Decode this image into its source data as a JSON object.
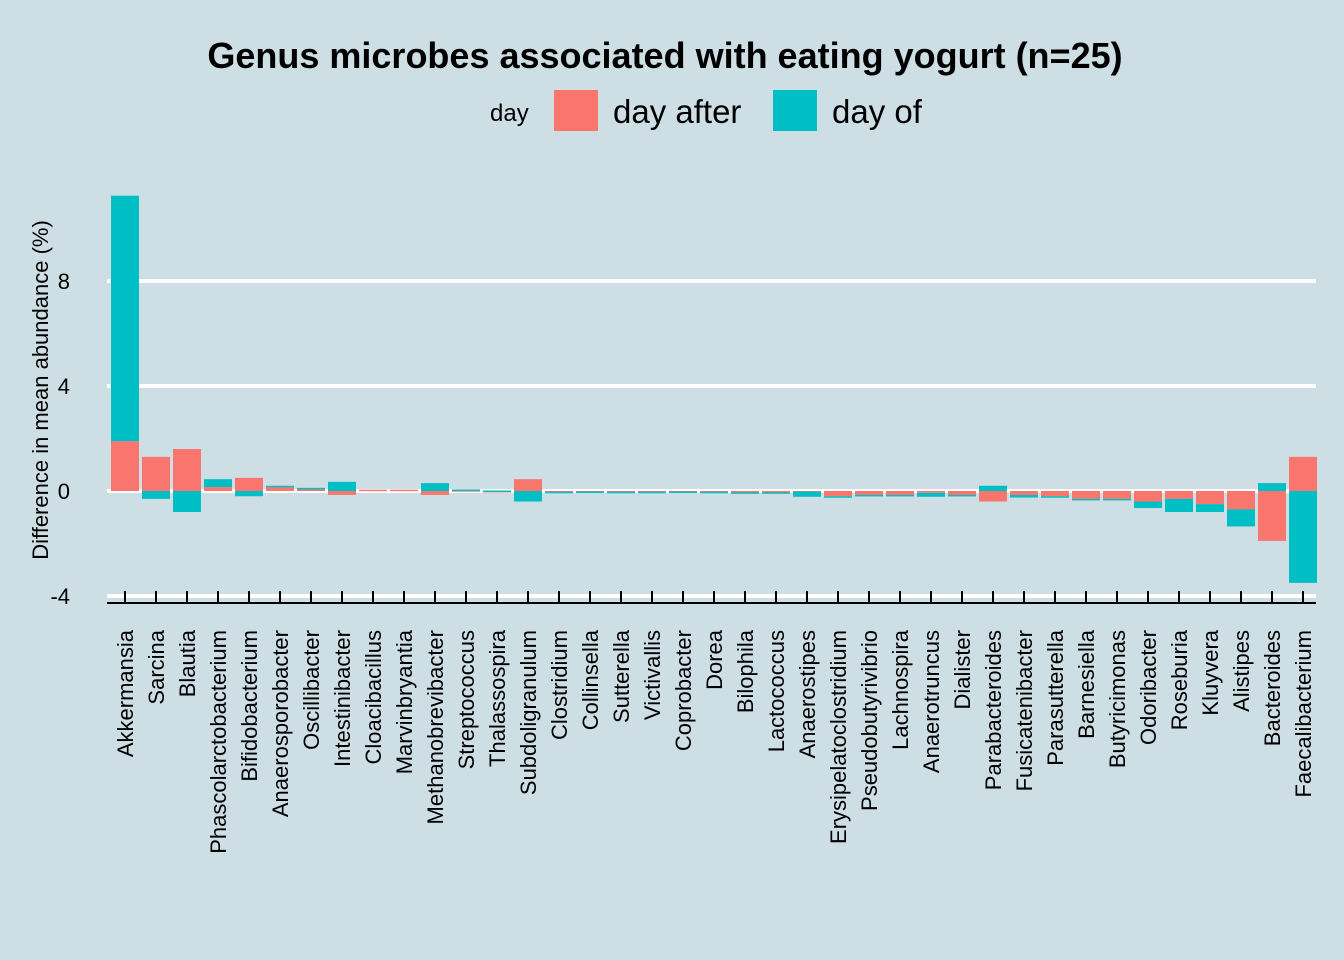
{
  "chart_data": {
    "type": "bar",
    "stacked": true,
    "title": "Genus microbes associated with eating yogurt (n=25)",
    "ylabel": "Difference in mean abundance (%)",
    "xlabel": "",
    "ylim": [
      -4.2,
      11.5
    ],
    "yticks": [
      -4,
      0,
      4,
      8
    ],
    "grid": true,
    "legend": {
      "title": "day",
      "position": "top"
    },
    "categories": [
      "Akkermansia",
      "Sarcina",
      "Blautia",
      "Phascolarctobacterium",
      "Bifidobacterium",
      "Anaerosporobacter",
      "Oscillibacter",
      "Intestinibacter",
      "Cloacibacillus",
      "Marvinbryantia",
      "Methanobrevibacter",
      "Streptococcus",
      "Thalassospira",
      "Subdoligranulum",
      "Clostridium",
      "Collinsella",
      "Sutterella",
      "Victivallis",
      "Coprobacter",
      "Dorea",
      "Bilophila",
      "Lactococcus",
      "Anaerostipes",
      "Erysipelatoclostridium",
      "Pseudobutyrivibrio",
      "Lachnospira",
      "Anaerotruncus",
      "Dialister",
      "Parabacteroides",
      "Fusicatenibacter",
      "Parasutterella",
      "Barnesiella",
      "Butyricimonas",
      "Odoribacter",
      "Roseburia",
      "Kluyvera",
      "Alistipes",
      "Bacteroides",
      "Faecalibacterium"
    ],
    "series": [
      {
        "name": "day after",
        "color": "#F8766D",
        "values": [
          1.9,
          1.3,
          1.6,
          0.15,
          0.5,
          0.15,
          0.1,
          -0.15,
          0.05,
          0.05,
          -0.15,
          0.03,
          -0.05,
          0.45,
          -0.03,
          -0.02,
          -0.03,
          -0.03,
          -0.02,
          -0.03,
          -0.05,
          -0.05,
          -0.02,
          -0.2,
          -0.15,
          -0.15,
          -0.07,
          -0.15,
          -0.4,
          -0.15,
          -0.2,
          -0.3,
          -0.3,
          -0.4,
          -0.3,
          -0.5,
          -0.7,
          -1.9,
          1.3
        ]
      },
      {
        "name": "day of",
        "color": "#00BFC4",
        "values": [
          9.35,
          -0.3,
          -0.8,
          0.3,
          -0.2,
          0.05,
          0.02,
          0.35,
          0.0,
          0.0,
          0.3,
          0.03,
          0.02,
          -0.4,
          -0.02,
          -0.02,
          -0.05,
          -0.04,
          -0.02,
          -0.02,
          -0.01,
          -0.03,
          -0.2,
          -0.02,
          -0.05,
          -0.05,
          -0.15,
          -0.05,
          0.2,
          -0.1,
          -0.05,
          -0.05,
          -0.05,
          -0.25,
          -0.5,
          -0.3,
          -0.65,
          0.3,
          -3.5
        ]
      }
    ]
  }
}
